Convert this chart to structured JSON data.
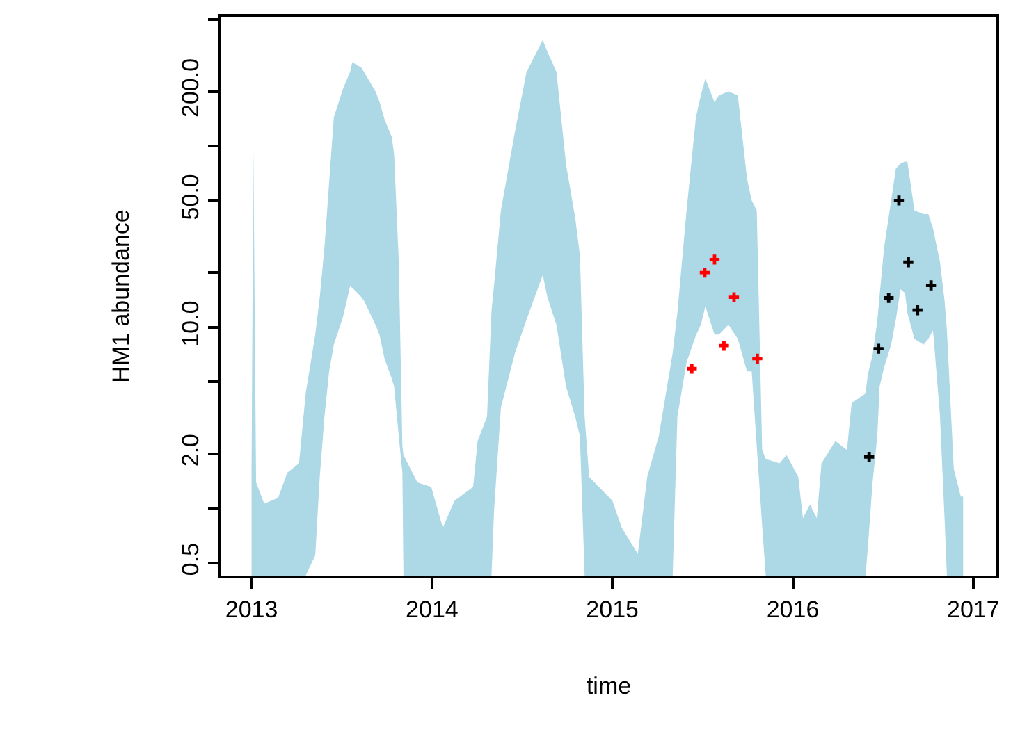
{
  "chart_data": {
    "type": "area",
    "xlabel": "time",
    "ylabel": "HM1 abundance",
    "log": "y",
    "xlim": [
      2012.832,
      2017.128
    ],
    "xticks": [
      2013,
      2014,
      2015,
      2016,
      2017
    ],
    "ylim": [
      0.425,
      517
    ],
    "yticks": [
      {
        "value": 0.5,
        "label": "0.5"
      },
      {
        "value": 1,
        "label": null
      },
      {
        "value": 2,
        "label": "2.0"
      },
      {
        "value": 5,
        "label": null
      },
      {
        "value": 10,
        "label": "10.0"
      },
      {
        "value": 20,
        "label": null
      },
      {
        "value": 50,
        "label": "50.0"
      },
      {
        "value": 100,
        "label": null
      },
      {
        "value": 200,
        "label": "200.0"
      },
      {
        "value": 500,
        "label": null
      }
    ],
    "series": [
      {
        "color": "#add8e6",
        "values": [
          null,
          null,
          null,
          null,
          null,
          null,
          null,
          null,
          null,
          null,
          null,
          null,
          null,
          null,
          null,
          null,
          null,
          null,
          null,
          null,
          null,
          null,
          null,
          null,
          null,
          null,
          null,
          null,
          null,
          null,
          null,
          null,
          null,
          null,
          null,
          null,
          null,
          null,
          null,
          null,
          null,
          null,
          null,
          null,
          null,
          null,
          null,
          null,
          null,
          null,
          null,
          null,
          null,
          null,
          null,
          null,
          null,
          null,
          null,
          null,
          null,
          null,
          null,
          null,
          null,
          null,
          null,
          null,
          null,
          null,
          null,
          null,
          null,
          null,
          null,
          null,
          null,
          null,
          null,
          null,
          null,
          null,
          null,
          null,
          null,
          null,
          null,
          null,
          null,
          null,
          null,
          null,
          null,
          null,
          null,
          null,
          null,
          null
        ],
        "x": [
          2013.0,
          2013.01,
          2013.025,
          2013.07,
          2013.147,
          2013.198,
          2013.263,
          2013.3,
          2013.353,
          2013.378,
          2013.404,
          2013.43,
          2013.456,
          2013.507,
          2013.546,
          2013.558,
          2013.61,
          2013.623,
          2013.687,
          2013.71,
          2013.737,
          2013.777,
          2013.79,
          2013.816,
          2013.836,
          2013.842,
          2013.919,
          2013.996,
          2014.06,
          2014.125,
          2014.228,
          2014.253,
          2014.305,
          2014.33,
          2014.344,
          2014.382,
          2014.46,
          2014.524,
          2014.614,
          2014.64,
          2014.69,
          2014.743,
          2014.794,
          2014.82,
          2014.846,
          2014.871,
          2015.0,
          2015.052,
          2015.141,
          2015.193,
          2015.257,
          2015.334,
          2015.36,
          2015.411,
          2015.463,
          2015.49,
          2015.515,
          2015.566,
          2015.59,
          2015.643,
          2015.695,
          2015.746,
          2015.772,
          2015.8,
          2015.83,
          2015.85,
          2015.927,
          2015.965,
          2016.03,
          2016.056,
          2016.095,
          2016.133,
          2016.159,
          2016.236,
          2016.3,
          2016.326,
          2016.403,
          2016.416,
          2016.442,
          2016.468,
          2016.481,
          2016.506,
          2016.545,
          2016.571,
          2016.597,
          2016.622,
          2016.635,
          2016.674,
          2016.725,
          2016.751,
          2016.777,
          2016.815,
          2016.841,
          2016.854,
          2016.874,
          2016.892,
          2016.931,
          2016.944
        ],
        "upper": [
          1.62,
          95,
          1.39,
          1.06,
          1.14,
          1.57,
          1.77,
          4.3,
          9.1,
          14.6,
          27.5,
          63,
          144,
          207,
          256,
          290,
          270,
          256,
          200,
          174,
          140,
          112,
          90,
          23,
          2.2,
          1.97,
          1.39,
          1.31,
          0.78,
          1.1,
          1.31,
          2.35,
          3.2,
          12.3,
          17,
          44,
          120,
          256,
          384,
          330,
          256,
          79,
          40,
          24.8,
          3.2,
          1.49,
          1.1,
          0.78,
          0.56,
          1.49,
          2.5,
          7.2,
          12,
          44,
          144,
          190,
          235,
          174,
          190,
          200,
          190,
          66,
          50,
          44,
          2.1,
          1.87,
          1.77,
          1.97,
          1.49,
          0.88,
          1.05,
          0.88,
          1.77,
          2.35,
          2.1,
          3.8,
          4.3,
          5.5,
          7,
          10.8,
          15,
          27.5,
          50,
          75,
          80,
          82,
          82,
          44,
          42,
          42,
          35,
          23,
          14,
          9.6,
          3.8,
          1.65,
          1.16,
          1.16
        ],
        "lower": [
          0.425,
          0.425,
          0.425,
          0.425,
          0.425,
          0.425,
          0.425,
          0.425,
          0.55,
          1.49,
          3.2,
          5.7,
          8.0,
          11.4,
          16.8,
          16.5,
          14.6,
          14,
          10.3,
          9,
          6.7,
          5.2,
          4.7,
          2.5,
          1.57,
          0.425,
          0.425,
          0.425,
          0.425,
          0.425,
          0.425,
          0.425,
          0.425,
          0.425,
          0.97,
          3.6,
          7.2,
          11,
          19.4,
          14.6,
          10.3,
          4.7,
          3.2,
          2.5,
          0.425,
          0.425,
          0.425,
          0.425,
          0.425,
          0.425,
          0.425,
          0.425,
          3.2,
          6.4,
          9,
          10.3,
          13,
          9.1,
          9.1,
          10.3,
          8.6,
          5.7,
          5.7,
          2.2,
          0.8,
          0.425,
          0.425,
          0.425,
          0.425,
          0.425,
          0.425,
          0.425,
          0.425,
          0.425,
          0.425,
          0.425,
          0.425,
          0.61,
          1.39,
          2.5,
          4.7,
          6,
          8.0,
          11,
          16.2,
          15.4,
          12,
          8.6,
          8.0,
          8.6,
          9.6,
          3.3,
          0.88,
          0.425,
          0.425,
          0.425,
          0.425,
          0.425
        ]
      },
      {
        "type": "scatter",
        "color": "#ff0000",
        "marker": "cross",
        "x": [
          2015.44,
          2015.512,
          2015.566,
          2015.618,
          2015.674,
          2015.803
        ],
        "values": [
          5.9,
          20.0,
          23.6,
          7.9,
          14.6,
          6.7
        ]
      },
      {
        "type": "scatter",
        "color": "#000000",
        "marker": "cross",
        "x": [
          2016.423,
          2016.475,
          2016.531,
          2016.588,
          2016.64,
          2016.691,
          2016.766
        ],
        "values": [
          1.92,
          7.6,
          14.5,
          50,
          22.8,
          12.4,
          17.0
        ]
      }
    ]
  }
}
